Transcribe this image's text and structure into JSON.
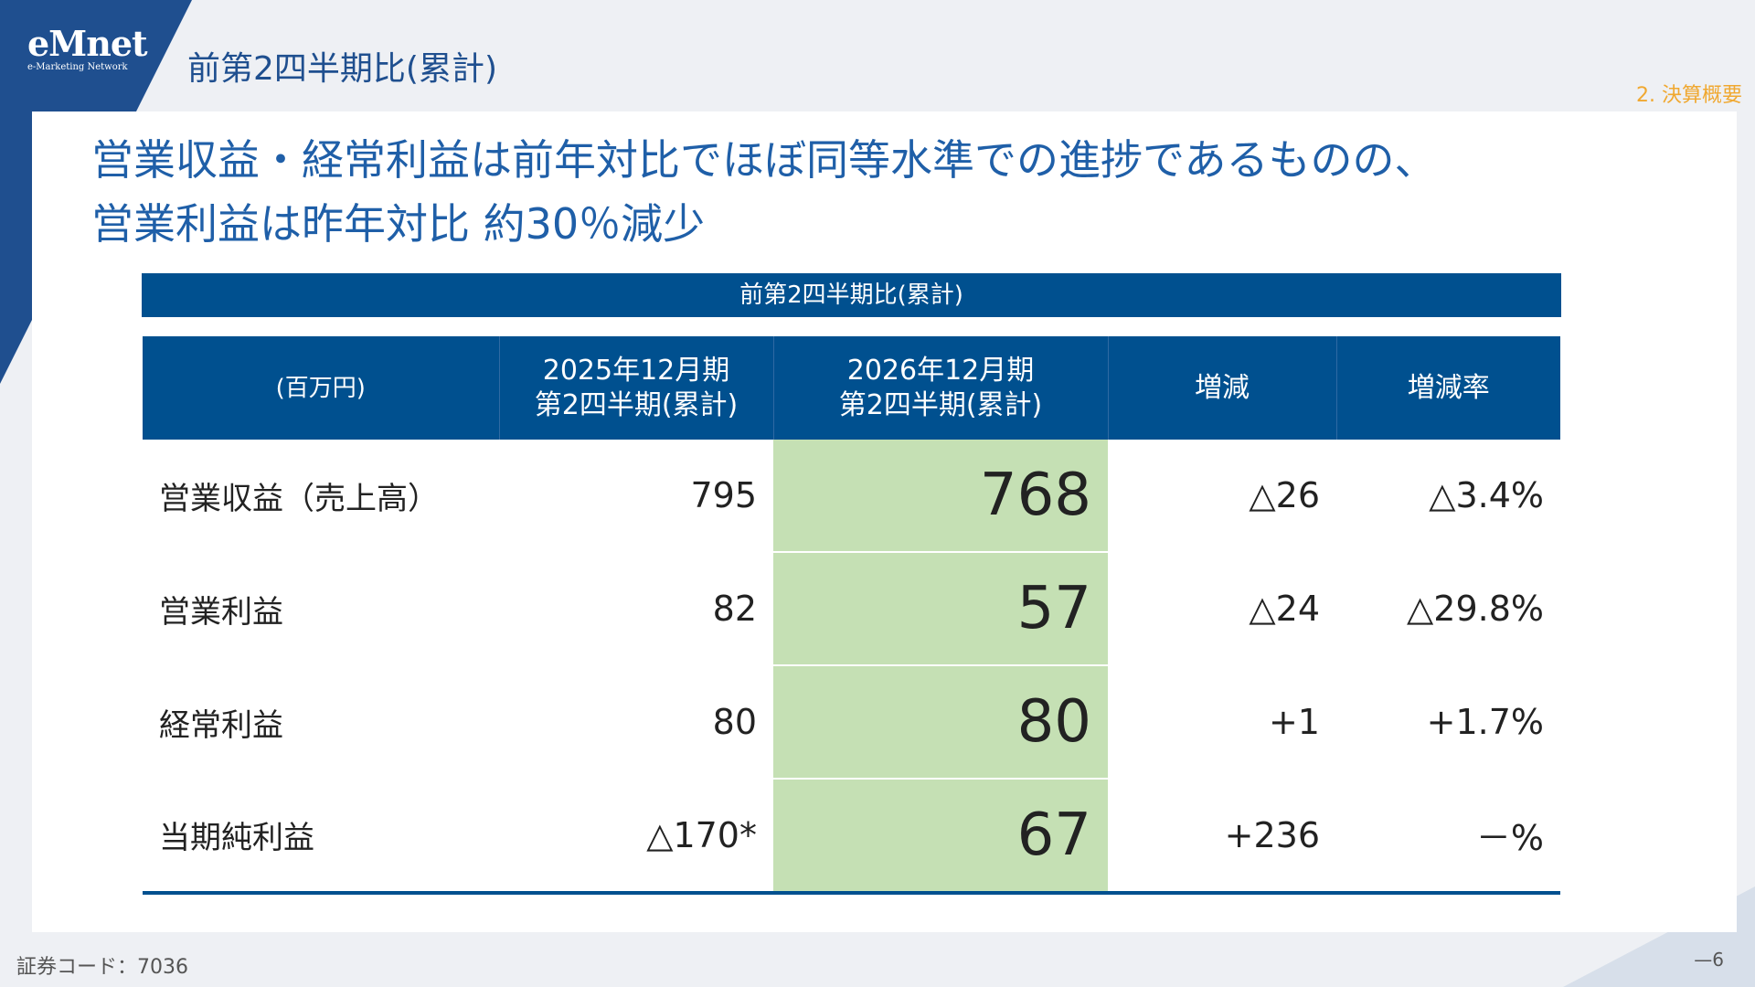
{
  "logo": {
    "brand": "eMnet",
    "tagline": "e-Marketing Network"
  },
  "header": {
    "title": "前第2四半期比(累計)",
    "section": "2. 決算概要"
  },
  "headline": {
    "line1": "営業収益・経常利益は前年対比でほぼ同等水準での進捗であるものの、",
    "line2": "営業利益は昨年対比 約30％減少"
  },
  "table": {
    "banner": "前第2四半期比(累計)",
    "columns": [
      {
        "line1": "(百万円)",
        "line2": ""
      },
      {
        "line1": "2025年12月期",
        "line2": "第2四半期(累計)"
      },
      {
        "line1": "2026年12月期",
        "line2": "第2四半期(累計)"
      },
      {
        "line1": "増減",
        "line2": ""
      },
      {
        "line1": "増減率",
        "line2": ""
      }
    ],
    "rows": [
      {
        "label": "営業収益（売上高）",
        "prev": "795",
        "current": "768",
        "change": "△26",
        "rate": "△3.4%"
      },
      {
        "label": "営業利益",
        "prev": "82",
        "current": "57",
        "change": "△24",
        "rate": "△29.8%"
      },
      {
        "label": "経常利益",
        "prev": "80",
        "current": "80",
        "change": "+1",
        "rate": "+1.7%"
      },
      {
        "label": "当期純利益",
        "prev": "△170*",
        "current": "67",
        "change": "+236",
        "rate": "－%"
      }
    ],
    "colors": {
      "header_bg": "#00508f",
      "highlight_bg": "#c5e0b4"
    }
  },
  "footer": {
    "stock_code": "証券コード：7036",
    "page": "—6"
  }
}
